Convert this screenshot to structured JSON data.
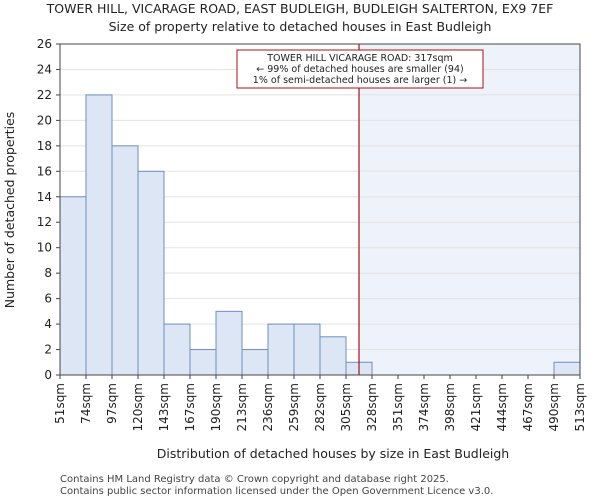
{
  "chart_data": {
    "type": "bar",
    "title": "TOWER HILL, VICARAGE ROAD, EAST BUDLEIGH, BUDLEIGH SALTERTON, EX9 7EF",
    "subtitle": "Size of property relative to detached houses in East Budleigh",
    "xlabel": "Distribution of detached houses by size in East Budleigh",
    "ylabel": "Number of detached properties",
    "bin_edges": [
      "51sqm",
      "74sqm",
      "97sqm",
      "120sqm",
      "143sqm",
      "167sqm",
      "190sqm",
      "213sqm",
      "236sqm",
      "259sqm",
      "282sqm",
      "305sqm",
      "328sqm",
      "351sqm",
      "374sqm",
      "398sqm",
      "421sqm",
      "444sqm",
      "467sqm",
      "490sqm",
      "513sqm"
    ],
    "values": [
      14,
      22,
      18,
      16,
      4,
      2,
      5,
      2,
      4,
      4,
      3,
      1,
      0,
      0,
      0,
      0,
      0,
      0,
      0,
      1
    ],
    "ylim": [
      0,
      26
    ],
    "yticks": [
      0,
      2,
      4,
      6,
      8,
      10,
      12,
      14,
      16,
      18,
      20,
      22,
      24,
      26
    ],
    "bar_color": "#dce6f4",
    "bar_edge_color": "#6f8fbf",
    "marker": {
      "bin_position": 11.5,
      "color": "#aa1111",
      "shaded_color": "#eef2fa"
    },
    "annotation": [
      "TOWER HILL VICARAGE ROAD: 317sqm",
      "← 99% of detached houses are smaller (94)",
      "1% of semi-detached houses are larger (1) →"
    ]
  },
  "footer": {
    "line1": "Contains HM Land Registry data © Crown copyright and database right 2025.",
    "line2": "Contains public sector information licensed under the Open Government Licence v3.0."
  }
}
